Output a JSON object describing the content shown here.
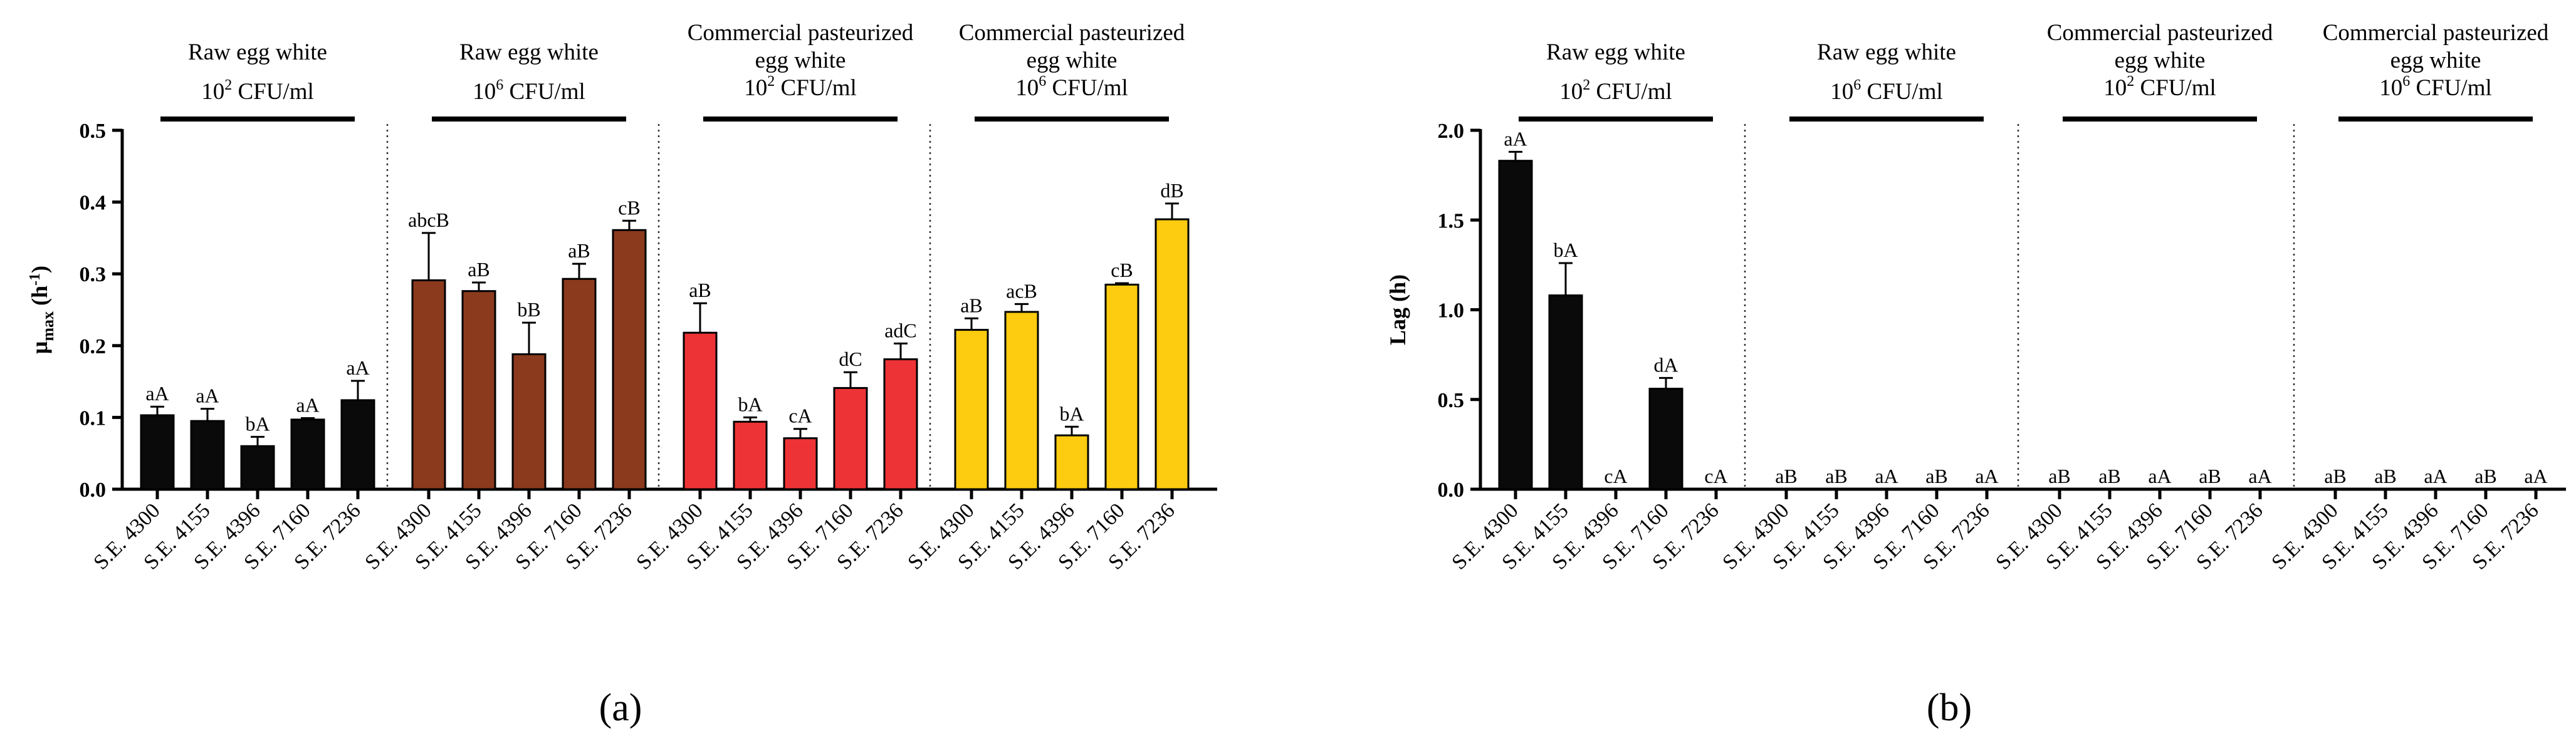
{
  "strains": [
    "S.E. 4300",
    "S.E. 4155",
    "S.E. 4396",
    "S.E. 7160",
    "S.E. 7236"
  ],
  "colors": {
    "raw_low": "#0a0a0a",
    "raw_high": "#8b3a1e",
    "past_low": "#ee3336",
    "past_high": "#fdcb0f",
    "axis": "#000000"
  },
  "chart_data": [
    {
      "panel": "a",
      "type": "bar",
      "panel_label": "(a)",
      "ylabel": {
        "main": "μ",
        "sub": "max",
        "unit_open": " (h",
        "unit_sup": "-1",
        "unit_close": ")"
      },
      "ylim": [
        0,
        0.5
      ],
      "yticks": [
        "0.0",
        "0.1",
        "0.2",
        "0.3",
        "0.4",
        "0.5"
      ],
      "tick_values": [
        0,
        0.1,
        0.2,
        0.3,
        0.4,
        0.5
      ],
      "groups": [
        {
          "title": [
            "Raw egg white"
          ],
          "conc_base": "10",
          "conc_exp": "2",
          "conc_unit": " CFU/ml",
          "color_key": "raw_low",
          "values": [
            0.103,
            0.095,
            0.06,
            0.097,
            0.124
          ],
          "errors": [
            0.012,
            0.017,
            0.013,
            0.002,
            0.027
          ],
          "labels": [
            "aA",
            "aA",
            "bA",
            "aA",
            "aA"
          ]
        },
        {
          "title": [
            "Raw egg white"
          ],
          "conc_base": "10",
          "conc_exp": "6",
          "conc_unit": " CFU/ml",
          "color_key": "raw_high",
          "values": [
            0.291,
            0.276,
            0.188,
            0.293,
            0.361
          ],
          "errors": [
            0.066,
            0.012,
            0.044,
            0.021,
            0.013
          ],
          "labels": [
            "abcB",
            "aB",
            "bB",
            "aB",
            "cB"
          ]
        },
        {
          "title": [
            "Commercial pasteurized",
            "egg white"
          ],
          "conc_base": "10",
          "conc_exp": "2",
          "conc_unit": " CFU/ml",
          "color_key": "past_low",
          "values": [
            0.218,
            0.094,
            0.071,
            0.141,
            0.181
          ],
          "errors": [
            0.041,
            0.006,
            0.013,
            0.022,
            0.022
          ],
          "labels": [
            "aB",
            "bA",
            "cA",
            "dC",
            "adC"
          ]
        },
        {
          "title": [
            "Commercial pasteurized",
            "egg white"
          ],
          "conc_base": "10",
          "conc_exp": "6",
          "conc_unit": " CFU/ml",
          "color_key": "past_high",
          "values": [
            0.222,
            0.247,
            0.075,
            0.285,
            0.376
          ],
          "errors": [
            0.016,
            0.011,
            0.012,
            0.002,
            0.022
          ],
          "labels": [
            "aB",
            "acB",
            "bA",
            "cB",
            "dB"
          ]
        }
      ]
    },
    {
      "panel": "b",
      "type": "bar",
      "panel_label": "(b)",
      "ylabel": {
        "main": "Lag (h)"
      },
      "ylim": [
        0,
        2.0
      ],
      "yticks": [
        "0.0",
        "0.5",
        "1.0",
        "1.5",
        "2.0"
      ],
      "tick_values": [
        0,
        0.5,
        1.0,
        1.5,
        2.0
      ],
      "groups": [
        {
          "title": [
            "Raw egg white"
          ],
          "conc_base": "10",
          "conc_exp": "2",
          "conc_unit": " CFU/ml",
          "color_key": "raw_low",
          "values": [
            1.83,
            1.08,
            0,
            0.56,
            0
          ],
          "errors": [
            0.05,
            0.18,
            0,
            0.06,
            0
          ],
          "labels": [
            "aA",
            "bA",
            "cA",
            "dA",
            "cA"
          ]
        },
        {
          "title": [
            "Raw egg white"
          ],
          "conc_base": "10",
          "conc_exp": "6",
          "conc_unit": " CFU/ml",
          "color_key": "raw_high",
          "values": [
            0,
            0,
            0,
            0,
            0
          ],
          "errors": [
            0,
            0,
            0,
            0,
            0
          ],
          "labels": [
            "aB",
            "aB",
            "aA",
            "aB",
            "aA"
          ]
        },
        {
          "title": [
            "Commercial pasteurized",
            "egg white"
          ],
          "conc_base": "10",
          "conc_exp": "2",
          "conc_unit": " CFU/ml",
          "color_key": "past_low",
          "values": [
            0,
            0,
            0,
            0,
            0
          ],
          "errors": [
            0,
            0,
            0,
            0,
            0
          ],
          "labels": [
            "aB",
            "aB",
            "aA",
            "aB",
            "aA"
          ]
        },
        {
          "title": [
            "Commercial pasteurized",
            "egg white"
          ],
          "conc_base": "10",
          "conc_exp": "6",
          "conc_unit": " CFU/ml",
          "color_key": "past_high",
          "values": [
            0,
            0,
            0,
            0,
            0
          ],
          "errors": [
            0,
            0,
            0,
            0,
            0
          ],
          "labels": [
            "aB",
            "aB",
            "aA",
            "aB",
            "aA"
          ]
        }
      ]
    }
  ]
}
